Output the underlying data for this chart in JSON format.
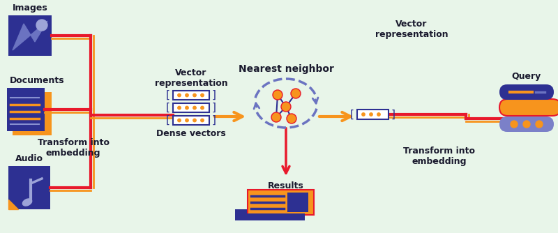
{
  "bg_color": "#e8f5e9",
  "dark_blue": "#2d3092",
  "orange": "#f7941d",
  "red": "#e8192c",
  "light_blue": "#6b73c1",
  "dark_navy": "#1a1a2e",
  "pill_purple": "#7b80c8",
  "labels": {
    "images": "Images",
    "documents": "Documents",
    "audio": "Audio",
    "transform_left": "Transform into\nembedding",
    "vector_rep_left": "Vector\nrepresentation",
    "dense_vectors": "Dense vectors",
    "nearest_neighbor": "Nearest neighbor",
    "results": "Results",
    "vector_rep_right": "Vector\nrepresentation",
    "transform_right": "Transform into\nembedding",
    "query": "Query"
  },
  "figsize": [
    8.0,
    3.34
  ],
  "dpi": 100
}
